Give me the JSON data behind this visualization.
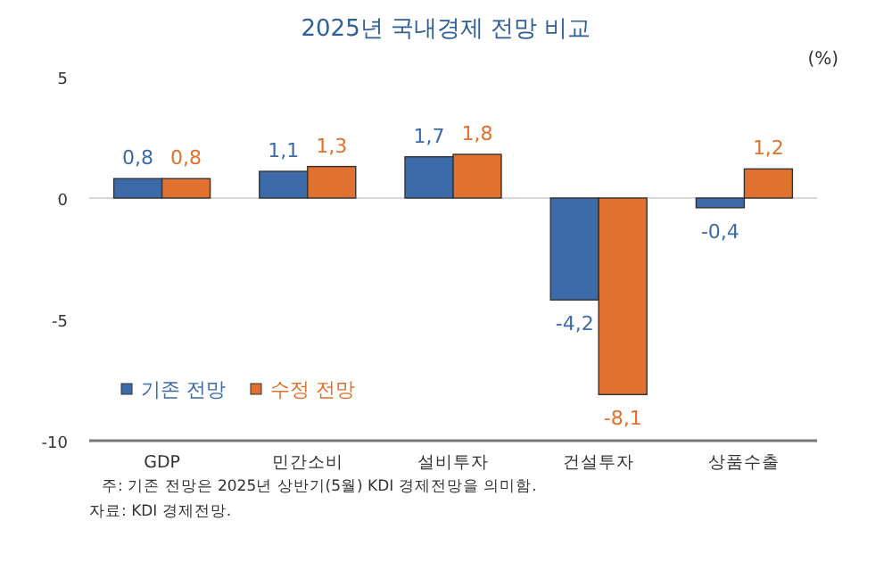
{
  "chart_data": {
    "type": "bar",
    "title": "2025년 국내경제 전망 비교",
    "categories": [
      "GDP",
      "민간소비",
      "설비투자",
      "건설투자",
      "상품수출"
    ],
    "series": [
      {
        "name": "기존 전망",
        "color": "#3d6aa8",
        "values": [
          0.8,
          1.1,
          1.7,
          -4.2,
          -0.4
        ],
        "value_labels": [
          "0,8",
          "1,1",
          "1,7",
          "-4,2",
          "-0,4"
        ]
      },
      {
        "name": "수정 전망",
        "color": "#e0712f",
        "values": [
          0.8,
          1.3,
          1.8,
          -8.1,
          1.2
        ],
        "value_labels": [
          "0,8",
          "1,3",
          "1,8",
          "-8,1",
          "1,2"
        ]
      }
    ],
    "ylim": [
      -10,
      5
    ],
    "yticks": [
      -10,
      -5,
      0,
      5
    ],
    "grid": false,
    "ref_lines": [
      {
        "axis": "y",
        "value": 0,
        "color": "#d9d9d9"
      }
    ],
    "legend": "bottom left",
    "annotations": [
      "(%)",
      "주: 기존 전망은 2025년 상반기(5월) KDI 경제전망을 의미함.",
      "자료: KDI 경제전망."
    ]
  }
}
